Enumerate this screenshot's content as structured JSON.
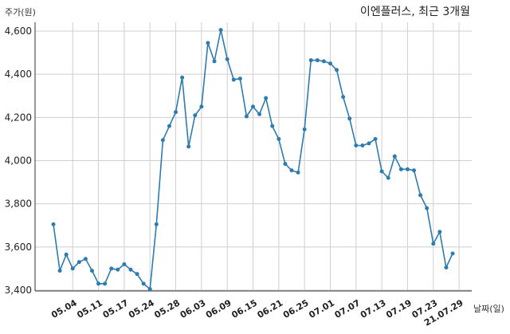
{
  "chart_data": {
    "type": "line",
    "title": "이엔플러스, 최근 3개월",
    "ylabel": "주가(원)",
    "xlabel": "날짜(일)",
    "ylim": [
      3400,
      4650
    ],
    "y_ticks": [
      "3,400",
      "3,600",
      "3,800",
      "4,000",
      "4,200",
      "4,400",
      "4,600"
    ],
    "y_tick_values": [
      3400,
      3600,
      3800,
      4000,
      4200,
      4400,
      4600
    ],
    "x_tick_labels": [
      "05.04",
      "05.11",
      "05.17",
      "05.24",
      "05.28",
      "06.03",
      "06.09",
      "06.15",
      "06.21",
      "06.25",
      "07.01",
      "07.07",
      "07.13",
      "07.19",
      "07.23",
      "21.07.29"
    ],
    "x_tick_index": [
      3,
      7,
      11,
      15,
      19,
      23,
      27,
      31,
      35,
      39,
      43,
      47,
      51,
      55,
      59,
      63
    ],
    "grid": true,
    "line_color": "#2e7bb0",
    "series": [
      {
        "values": [
          3705,
          3490,
          3565,
          3500,
          3530,
          3545,
          3490,
          3430,
          3430,
          3500,
          3495,
          3520,
          3495,
          3475,
          3430,
          3405,
          3705,
          4095,
          4160,
          4225,
          4385,
          4065,
          4210,
          4250,
          4545,
          4460,
          4605,
          4470,
          4375,
          4380,
          4205,
          4250,
          4215,
          4290,
          4160,
          4100,
          3985,
          3955,
          3945,
          4145,
          4465,
          4465,
          4460,
          4450,
          4420,
          4295,
          4195,
          4070,
          4070,
          4080,
          4100,
          3950,
          3920,
          4020,
          3960,
          3960,
          3955,
          3840,
          3780,
          3615,
          3670,
          3505,
          3570
        ]
      }
    ]
  }
}
